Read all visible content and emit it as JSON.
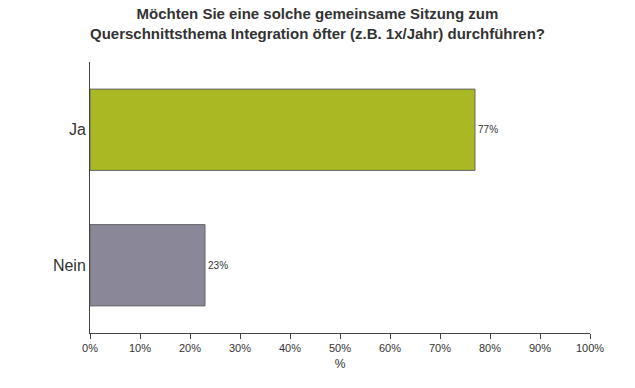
{
  "chart_data": {
    "type": "bar",
    "orientation": "horizontal",
    "title": "Möchten Sie eine solche gemeinsame Sitzung zum Querschnittsthema Integration öfter (z.B. 1x/Jahr) durchführen?",
    "x_label": "%",
    "categories": [
      "Ja",
      "Nein"
    ],
    "values": [
      77,
      23
    ],
    "value_labels": [
      "77%",
      "23%"
    ],
    "colors": [
      "#a9b823",
      "#8a8898"
    ],
    "xlim": [
      0,
      100
    ],
    "xticks": [
      {
        "value": 0,
        "label": "0%"
      },
      {
        "value": 10,
        "label": "10%"
      },
      {
        "value": 20,
        "label": "20%"
      },
      {
        "value": 30,
        "label": "30%"
      },
      {
        "value": 40,
        "label": "40%"
      },
      {
        "value": 50,
        "label": "50%"
      },
      {
        "value": 60,
        "label": "60%"
      },
      {
        "value": 70,
        "label": "70%"
      },
      {
        "value": 80,
        "label": "80%"
      },
      {
        "value": 90,
        "label": "90%"
      },
      {
        "value": 100,
        "label": "100%"
      }
    ],
    "grid": false,
    "data_labels": true
  }
}
